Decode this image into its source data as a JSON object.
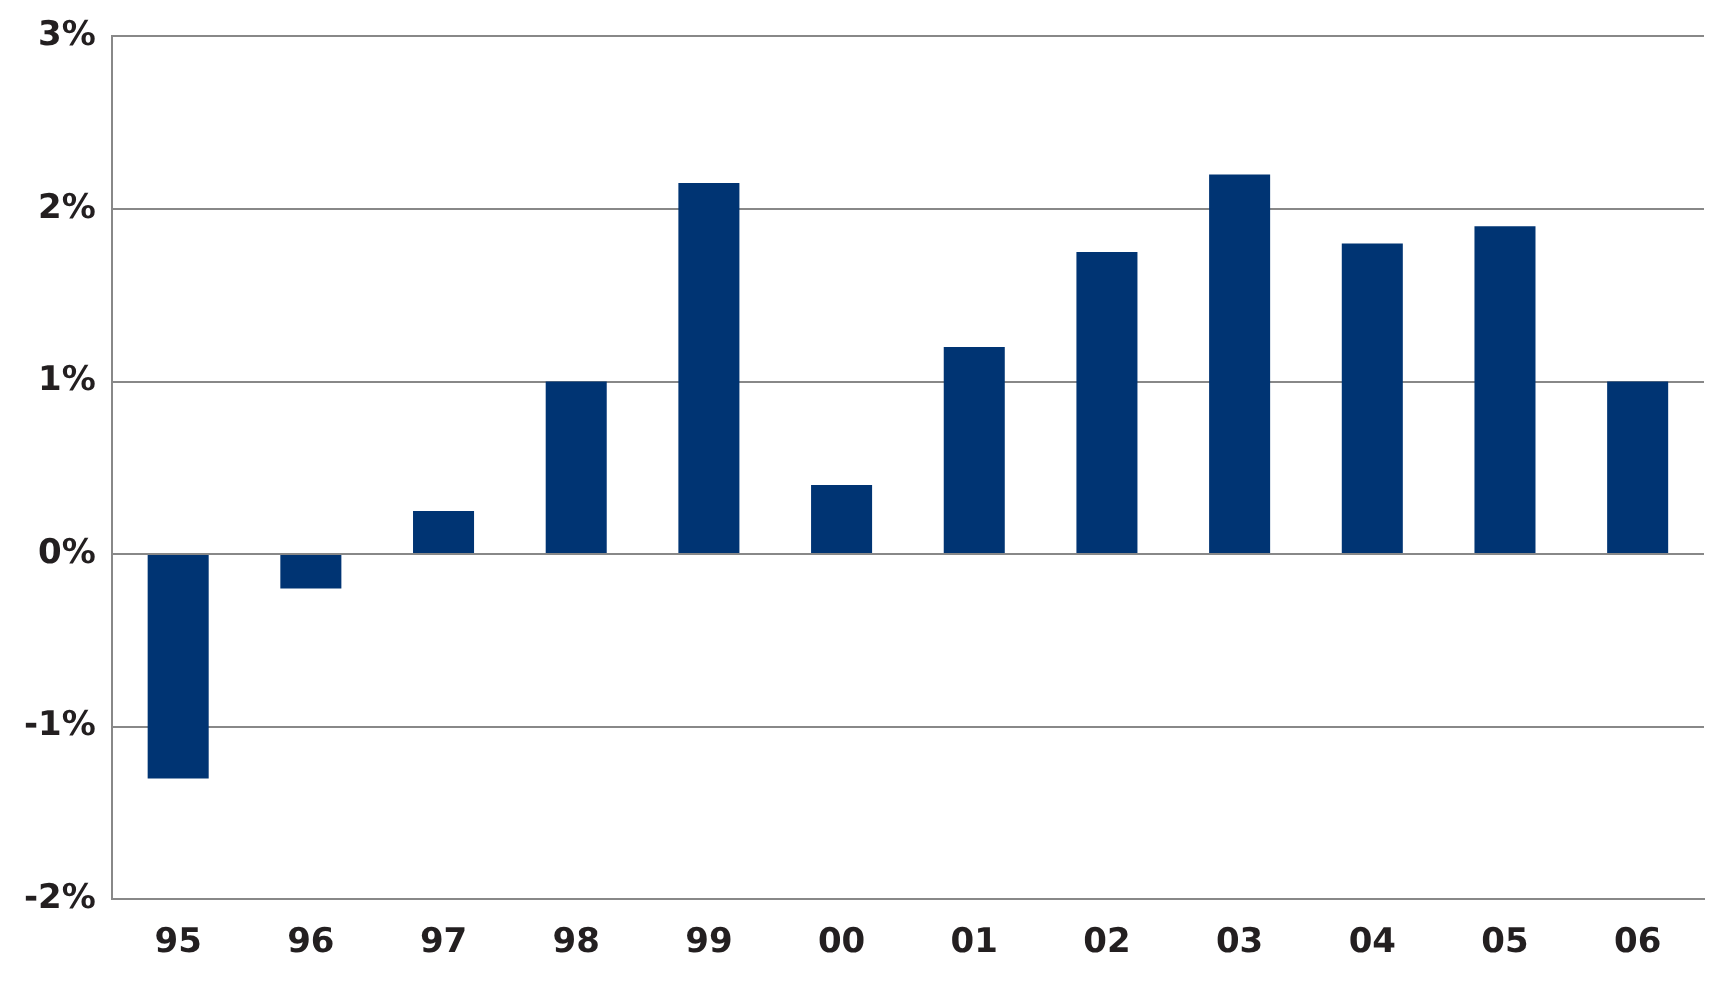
{
  "chart_data": {
    "type": "bar",
    "categories": [
      "95",
      "96",
      "97",
      "98",
      "99",
      "00",
      "01",
      "02",
      "03",
      "04",
      "05",
      "06"
    ],
    "values": [
      -1.3,
      -0.2,
      0.25,
      1.0,
      2.15,
      0.4,
      1.2,
      1.75,
      2.2,
      1.8,
      1.9,
      1.0
    ],
    "color": "#003473",
    "ylim": [
      -2,
      3
    ],
    "yticks": [
      {
        "value": -2,
        "label": "-2%"
      },
      {
        "value": -1,
        "label": "-1%"
      },
      {
        "value": 0,
        "label": "0%"
      },
      {
        "value": 1,
        "label": "1%"
      },
      {
        "value": 2,
        "label": "2%"
      },
      {
        "value": 3,
        "label": "3%"
      }
    ],
    "grid": "y",
    "legend": false
  }
}
